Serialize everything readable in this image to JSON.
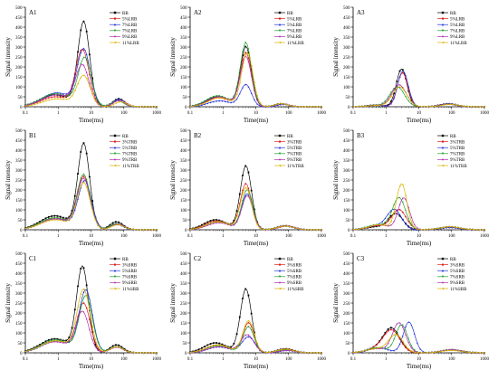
{
  "figure": {
    "common": {
      "xlabel": "Time(ms)",
      "ylabel": "Signal intensity",
      "ylim": [
        0,
        500
      ],
      "xlim": [
        0.1,
        1000
      ],
      "xscale": "log",
      "y_ticks": [
        0,
        50,
        100,
        150,
        200,
        250,
        300,
        350,
        400,
        450,
        500
      ],
      "x_ticks": [
        "0.1",
        "1",
        "10",
        "100",
        "1000"
      ]
    },
    "colors": [
      "#000000",
      "#e0201a",
      "#2030d8",
      "#20a030",
      "#b030b0",
      "#d8b400"
    ],
    "marker_shapes": [
      "square",
      "circle",
      "triangle-up",
      "triangle-down",
      "diamond",
      "triangle-left"
    ]
  },
  "chart_data": [
    {
      "id": "A1",
      "type": "line",
      "panel_label": "A1",
      "series": [
        {
          "name": "RB",
          "peaks": [
            [
              0.8,
              60,
              0.45
            ],
            [
              6,
              420,
              0.18
            ],
            [
              70,
              40,
              0.18
            ]
          ]
        },
        {
          "name": "5%LRB",
          "peaks": [
            [
              0.85,
              50,
              0.45
            ],
            [
              5.5,
              280,
              0.2
            ],
            [
              75,
              35,
              0.18
            ]
          ]
        },
        {
          "name": "7%LRB",
          "peaks": [
            [
              0.9,
              70,
              0.45
            ],
            [
              6,
              280,
              0.2
            ],
            [
              70,
              38,
              0.18
            ]
          ]
        },
        {
          "name": "7%LRB",
          "peaks": [
            [
              0.85,
              65,
              0.45
            ],
            [
              6.5,
              240,
              0.2
            ],
            [
              65,
              30,
              0.18
            ]
          ]
        },
        {
          "name": "9%LRB",
          "peaks": [
            [
              0.9,
              60,
              0.45
            ],
            [
              5.5,
              200,
              0.2
            ],
            [
              70,
              30,
              0.18
            ]
          ]
        },
        {
          "name": "11%LRB",
          "peaks": [
            [
              0.95,
              40,
              0.45
            ],
            [
              6,
              150,
              0.2
            ],
            [
              80,
              25,
              0.18
            ]
          ]
        }
      ]
    },
    {
      "id": "A2",
      "type": "line",
      "panel_label": "A2",
      "series": [
        {
          "name": "RB",
          "peaks": [
            [
              0.7,
              50,
              0.35
            ],
            [
              5,
              300,
              0.17
            ],
            [
              60,
              15,
              0.2
            ]
          ]
        },
        {
          "name": "5%LRB",
          "peaks": [
            [
              0.75,
              45,
              0.35
            ],
            [
              5,
              270,
              0.17
            ],
            [
              60,
              15,
              0.2
            ]
          ]
        },
        {
          "name": "5%LRB",
          "peaks": [
            [
              0.8,
              30,
              0.35
            ],
            [
              5,
              110,
              0.17
            ],
            [
              70,
              12,
              0.2
            ]
          ]
        },
        {
          "name": "7%LRB",
          "peaks": [
            [
              0.7,
              55,
              0.35
            ],
            [
              5,
              320,
              0.17
            ],
            [
              60,
              15,
              0.2
            ]
          ]
        },
        {
          "name": "9%LRB",
          "peaks": [
            [
              0.75,
              50,
              0.35
            ],
            [
              5,
              250,
              0.17
            ],
            [
              65,
              15,
              0.2
            ]
          ]
        },
        {
          "name": "11%LRB",
          "peaks": [
            [
              0.8,
              45,
              0.35
            ],
            [
              5.5,
              270,
              0.17
            ],
            [
              60,
              15,
              0.2
            ]
          ]
        }
      ]
    },
    {
      "id": "A3",
      "type": "line",
      "panel_label": "A3",
      "series": [
        {
          "name": "RB",
          "peaks": [
            [
              0.5,
              8,
              0.25
            ],
            [
              3,
              190,
              0.16
            ],
            [
              80,
              15,
              0.25
            ]
          ]
        },
        {
          "name": "5%LRB",
          "peaks": [
            [
              0.5,
              8,
              0.25
            ],
            [
              3.2,
              170,
              0.16
            ],
            [
              80,
              15,
              0.25
            ]
          ]
        },
        {
          "name": "5%LRB",
          "peaks": [
            [
              0.5,
              8,
              0.25
            ],
            [
              3.3,
              180,
              0.16
            ],
            [
              80,
              15,
              0.25
            ]
          ]
        },
        {
          "name": "7%LRB",
          "peaks": [
            [
              0.5,
              6,
              0.25
            ],
            [
              2.2,
              100,
              0.22
            ],
            [
              80,
              12,
              0.25
            ]
          ]
        },
        {
          "name": "9%LRB",
          "peaks": [
            [
              0.5,
              6,
              0.25
            ],
            [
              2.5,
              110,
              0.22
            ],
            [
              80,
              12,
              0.25
            ]
          ]
        },
        {
          "name": "11%LRB",
          "peaks": [
            [
              0.5,
              6,
              0.25
            ],
            [
              2.6,
              100,
              0.22
            ],
            [
              90,
              12,
              0.25
            ]
          ]
        }
      ]
    },
    {
      "id": "B1",
      "type": "line",
      "panel_label": "B1",
      "series": [
        {
          "name": "RB",
          "peaks": [
            [
              0.8,
              70,
              0.45
            ],
            [
              6,
              425,
              0.18
            ],
            [
              60,
              40,
              0.2
            ]
          ]
        },
        {
          "name": "3%TRB",
          "peaks": [
            [
              0.8,
              60,
              0.45
            ],
            [
              6,
              260,
              0.2
            ],
            [
              60,
              30,
              0.2
            ]
          ]
        },
        {
          "name": "5%TRB",
          "peaks": [
            [
              0.85,
              55,
              0.45
            ],
            [
              6.5,
              240,
              0.2
            ],
            [
              60,
              28,
              0.2
            ]
          ]
        },
        {
          "name": "7%TRB",
          "peaks": [
            [
              0.8,
              60,
              0.45
            ],
            [
              6,
              270,
              0.2
            ],
            [
              60,
              30,
              0.2
            ]
          ]
        },
        {
          "name": "9%TRB",
          "peaks": [
            [
              0.85,
              55,
              0.45
            ],
            [
              6,
              250,
              0.2
            ],
            [
              65,
              28,
              0.2
            ]
          ]
        },
        {
          "name": "11%TRB",
          "peaks": [
            [
              0.8,
              50,
              0.45
            ],
            [
              6,
              230,
              0.2
            ],
            [
              65,
              25,
              0.2
            ]
          ]
        }
      ]
    },
    {
      "id": "B2",
      "type": "line",
      "panel_label": "B2",
      "series": [
        {
          "name": "RB",
          "peaks": [
            [
              0.6,
              50,
              0.35
            ],
            [
              5,
              320,
              0.17
            ],
            [
              80,
              20,
              0.25
            ]
          ]
        },
        {
          "name": "3%TRB",
          "peaks": [
            [
              0.65,
              45,
              0.35
            ],
            [
              5,
              230,
              0.17
            ],
            [
              80,
              20,
              0.25
            ]
          ]
        },
        {
          "name": "5%TRB",
          "peaks": [
            [
              0.7,
              40,
              0.35
            ],
            [
              5.5,
              180,
              0.17
            ],
            [
              80,
              18,
              0.25
            ]
          ]
        },
        {
          "name": "7%TRB",
          "peaks": [
            [
              0.7,
              40,
              0.35
            ],
            [
              5.5,
              200,
              0.17
            ],
            [
              80,
              18,
              0.25
            ]
          ]
        },
        {
          "name": "9%TRB",
          "peaks": [
            [
              0.75,
              35,
              0.35
            ],
            [
              5.5,
              170,
              0.17
            ],
            [
              90,
              18,
              0.25
            ]
          ]
        },
        {
          "name": "11%TRB",
          "peaks": [
            [
              0.7,
              40,
              0.35
            ],
            [
              5,
              210,
              0.17
            ],
            [
              80,
              18,
              0.25
            ]
          ]
        }
      ]
    },
    {
      "id": "B3",
      "type": "line",
      "panel_label": "B3",
      "series": [
        {
          "name": "RB",
          "peaks": [
            [
              0.5,
              15,
              0.3
            ],
            [
              2,
              80,
              0.22
            ],
            [
              90,
              12,
              0.3
            ]
          ]
        },
        {
          "name": "3%TRB",
          "peaks": [
            [
              0.55,
              20,
              0.3
            ],
            [
              2.5,
              100,
              0.22
            ],
            [
              90,
              15,
              0.3
            ]
          ]
        },
        {
          "name": "5%TRB",
          "peaks": [
            [
              0.5,
              20,
              0.3
            ],
            [
              1.8,
              100,
              0.22
            ],
            [
              90,
              12,
              0.3
            ]
          ]
        },
        {
          "name": "7%TRB",
          "peaks": [
            [
              0.55,
              25,
              0.3
            ],
            [
              2.5,
              160,
              0.2
            ],
            [
              90,
              15,
              0.3
            ]
          ]
        },
        {
          "name": "9%TRB",
          "peaks": [
            [
              0.6,
              25,
              0.3
            ],
            [
              3.5,
              160,
              0.17
            ],
            [
              90,
              15,
              0.3
            ]
          ]
        },
        {
          "name": "11%TRB",
          "peaks": [
            [
              0.6,
              25,
              0.3
            ],
            [
              3,
              230,
              0.16
            ],
            [
              90,
              15,
              0.3
            ]
          ]
        }
      ]
    },
    {
      "id": "C1",
      "type": "line",
      "panel_label": "C1",
      "series": [
        {
          "name": "RB",
          "peaks": [
            [
              0.8,
              70,
              0.45
            ],
            [
              5.5,
              425,
              0.18
            ],
            [
              60,
              40,
              0.2
            ]
          ]
        },
        {
          "name": "3%SRB",
          "peaks": [
            [
              0.85,
              60,
              0.45
            ],
            [
              6,
              240,
              0.2
            ],
            [
              60,
              30,
              0.2
            ]
          ]
        },
        {
          "name": "5%SRB",
          "peaks": [
            [
              0.9,
              60,
              0.45
            ],
            [
              7,
              310,
              0.2
            ],
            [
              60,
              30,
              0.2
            ]
          ]
        },
        {
          "name": "7%SRB",
          "peaks": [
            [
              0.85,
              65,
              0.45
            ],
            [
              7,
              280,
              0.2
            ],
            [
              60,
              30,
              0.2
            ]
          ]
        },
        {
          "name": "9%SRB",
          "peaks": [
            [
              0.8,
              55,
              0.45
            ],
            [
              5.5,
              200,
              0.2
            ],
            [
              60,
              28,
              0.2
            ]
          ]
        },
        {
          "name": "11%SRB",
          "peaks": [
            [
              0.85,
              60,
              0.45
            ],
            [
              6,
              310,
              0.2
            ],
            [
              60,
              30,
              0.2
            ]
          ]
        }
      ]
    },
    {
      "id": "C2",
      "type": "line",
      "panel_label": "C2",
      "series": [
        {
          "name": "RB",
          "peaks": [
            [
              0.6,
              50,
              0.35
            ],
            [
              5,
              320,
              0.17
            ],
            [
              80,
              20,
              0.25
            ]
          ]
        },
        {
          "name": "3%SRB",
          "peaks": [
            [
              0.7,
              40,
              0.35
            ],
            [
              6,
              150,
              0.17
            ],
            [
              80,
              18,
              0.25
            ]
          ]
        },
        {
          "name": "5%SRB",
          "peaks": [
            [
              0.75,
              30,
              0.35
            ],
            [
              6,
              80,
              0.2
            ],
            [
              90,
              12,
              0.25
            ]
          ]
        },
        {
          "name": "7%SRB",
          "peaks": [
            [
              0.7,
              35,
              0.35
            ],
            [
              6,
              130,
              0.17
            ],
            [
              80,
              15,
              0.25
            ]
          ]
        },
        {
          "name": "9%SRB",
          "peaks": [
            [
              0.75,
              30,
              0.35
            ],
            [
              5.5,
              90,
              0.2
            ],
            [
              90,
              12,
              0.25
            ]
          ]
        },
        {
          "name": "11%SRB",
          "peaks": [
            [
              0.7,
              40,
              0.35
            ],
            [
              6,
              160,
              0.17
            ],
            [
              80,
              18,
              0.25
            ]
          ]
        }
      ]
    },
    {
      "id": "C3",
      "type": "line",
      "panel_label": "C3",
      "series": [
        {
          "name": "RB",
          "peaks": [
            [
              0.5,
              20,
              0.3
            ],
            [
              1.5,
              120,
              0.25
            ],
            [
              100,
              15,
              0.3
            ]
          ]
        },
        {
          "name": "3%SRB",
          "peaks": [
            [
              0.5,
              20,
              0.3
            ],
            [
              1.5,
              110,
              0.25
            ],
            [
              100,
              15,
              0.3
            ]
          ]
        },
        {
          "name": "5%SRB",
          "peaks": [
            [
              0.6,
              25,
              0.3
            ],
            [
              5,
              155,
              0.17
            ],
            [
              100,
              15,
              0.3
            ]
          ]
        },
        {
          "name": "7%SRB",
          "peaks": [
            [
              0.55,
              25,
              0.3
            ],
            [
              3,
              140,
              0.18
            ],
            [
              100,
              15,
              0.3
            ]
          ]
        },
        {
          "name": "9%SRB",
          "peaks": [
            [
              0.5,
              20,
              0.3
            ],
            [
              2.5,
              150,
              0.2
            ],
            [
              100,
              15,
              0.3
            ]
          ]
        },
        {
          "name": "11%SRB",
          "peaks": [
            [
              0.5,
              20,
              0.3
            ],
            [
              2,
              90,
              0.22
            ],
            [
              100,
              12,
              0.3
            ]
          ]
        }
      ]
    }
  ]
}
